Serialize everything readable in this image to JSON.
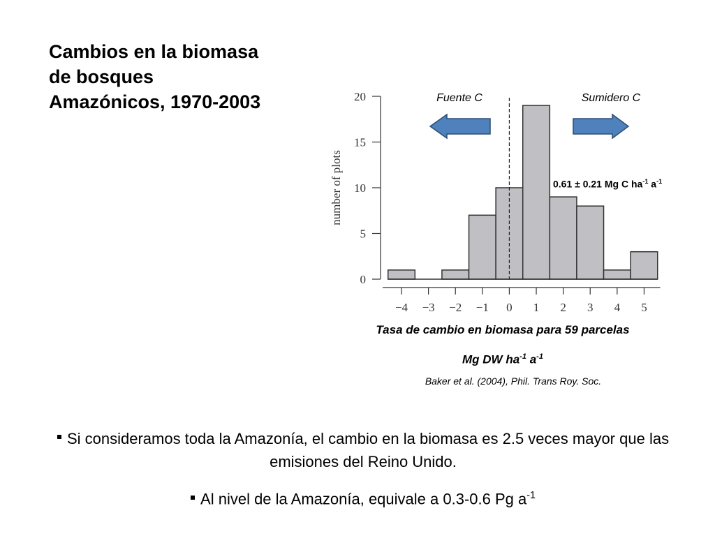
{
  "title_lines": [
    "Cambios en la  biomasa",
    "de bosques",
    "Amazónicos, 1970-2003"
  ],
  "chart_data": {
    "type": "histogram",
    "bins": [
      -4.5,
      -3.5,
      -2.5,
      -1.5,
      -0.5,
      0.5,
      1.5,
      2.5,
      3.5,
      4.5,
      5.5
    ],
    "values": [
      1,
      0,
      1,
      7,
      10,
      19,
      9,
      8,
      1,
      3
    ],
    "color": "#c0c0c4",
    "xlim": [
      -4.7,
      5.6
    ],
    "xticks": [
      {
        "value": -4,
        "label": "−4"
      },
      {
        "value": -3,
        "label": "−3"
      },
      {
        "value": -2,
        "label": "−2"
      },
      {
        "value": -1,
        "label": "−1"
      },
      0,
      1,
      2,
      3,
      4,
      5
    ],
    "ylim": [
      0,
      20
    ],
    "yticks": [
      0,
      5,
      10,
      15,
      20
    ],
    "ylabel": "number of plots",
    "reference_x": 0,
    "annotations": [
      "Fuente C",
      "Sumidero C"
    ],
    "rate_label": [
      "0.61 ± 0.21 Mg C ha",
      "-1",
      " a",
      "-1"
    ],
    "xlabel": "Tasa de cambio en biomasa para 59 parcelas",
    "unit_label": [
      "Mg DW ha",
      "-1",
      " a",
      "-1"
    ],
    "source": "Baker et al. (2004), Phil. Trans Roy. Soc."
  },
  "bullets": [
    [
      "Si consideramos toda la Amazonía, el cambio en la biomasa es 2.5 veces mayor que las emisiones del Reino Unido."
    ],
    [
      "Al nivel de la Amazonía, equivale a 0.3-0.6 Pg a",
      "-1"
    ]
  ]
}
